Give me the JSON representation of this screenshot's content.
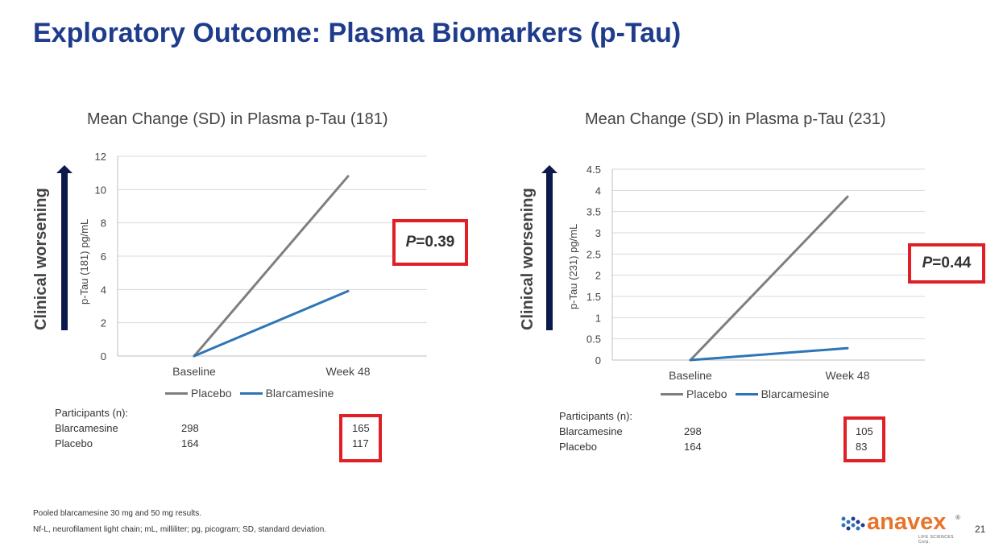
{
  "slide": {
    "title": "Exploratory Outcome: Plasma Biomarkers (p-Tau)",
    "footnote1": "Pooled blarcamesine 30 mg and 50 mg results.",
    "footnote2": "Nf-L, neurofilament light chain; mL, milliliter; pg, picogram; SD, standard deviation.",
    "page_number": "21",
    "logo_text": "anavex",
    "logo_sub": "LIFE SCIENCES Corp.",
    "logo_mark": "®"
  },
  "colors": {
    "title": "#1f3c8c",
    "placebo": "#7f7f7f",
    "blarcamesine": "#2e75b6",
    "highlight": "#e01f26",
    "arrow": "#0b1a4a",
    "logo": "#e8742a"
  },
  "panels": [
    {
      "worsening_label": "Clinical worsening",
      "p_value_prefix": "P",
      "p_value_rest": "=0.39",
      "participants_label": "Participants (n):",
      "participants": [
        {
          "name": "Blarcamesine",
          "baseline": "298",
          "week48": "165"
        },
        {
          "name": "Placebo",
          "baseline": "164",
          "week48": "117"
        }
      ]
    },
    {
      "worsening_label": "Clinical worsening",
      "p_value_prefix": "P",
      "p_value_rest": "=0.44",
      "participants_label": "Participants (n):",
      "participants": [
        {
          "name": "Blarcamesine",
          "baseline": "298",
          "week48": "105"
        },
        {
          "name": "Placebo",
          "baseline": "164",
          "week48": "83"
        }
      ]
    }
  ],
  "chart_data": [
    {
      "type": "line",
      "title": "Mean Change (SD) in Plasma p-Tau (181)",
      "xlabel": "",
      "ylabel": "p-Tau (181) pg/mL",
      "categories": [
        "Baseline",
        "Week 48"
      ],
      "ylim": [
        0,
        12
      ],
      "yticks": [
        "0",
        "2",
        "4",
        "6",
        "8",
        "10",
        "12"
      ],
      "grid": true,
      "legend": "bottom",
      "series": [
        {
          "name": "Placebo",
          "values": [
            0,
            10.8
          ]
        },
        {
          "name": "Blarcamesine",
          "values": [
            0,
            3.9
          ]
        }
      ]
    },
    {
      "type": "line",
      "title": "Mean Change (SD) in Plasma p-Tau (231)",
      "xlabel": "",
      "ylabel": "p-Tau (231) pg/mL",
      "categories": [
        "Baseline",
        "Week 48"
      ],
      "ylim": [
        0,
        4.5
      ],
      "yticks": [
        "0",
        "0.5",
        "1",
        "1.5",
        "2",
        "2.5",
        "3",
        "3.5",
        "4",
        "4.5"
      ],
      "grid": true,
      "legend": "bottom",
      "series": [
        {
          "name": "Placebo",
          "values": [
            0,
            3.85
          ]
        },
        {
          "name": "Blarcamesine",
          "values": [
            0,
            0.28
          ]
        }
      ]
    }
  ]
}
